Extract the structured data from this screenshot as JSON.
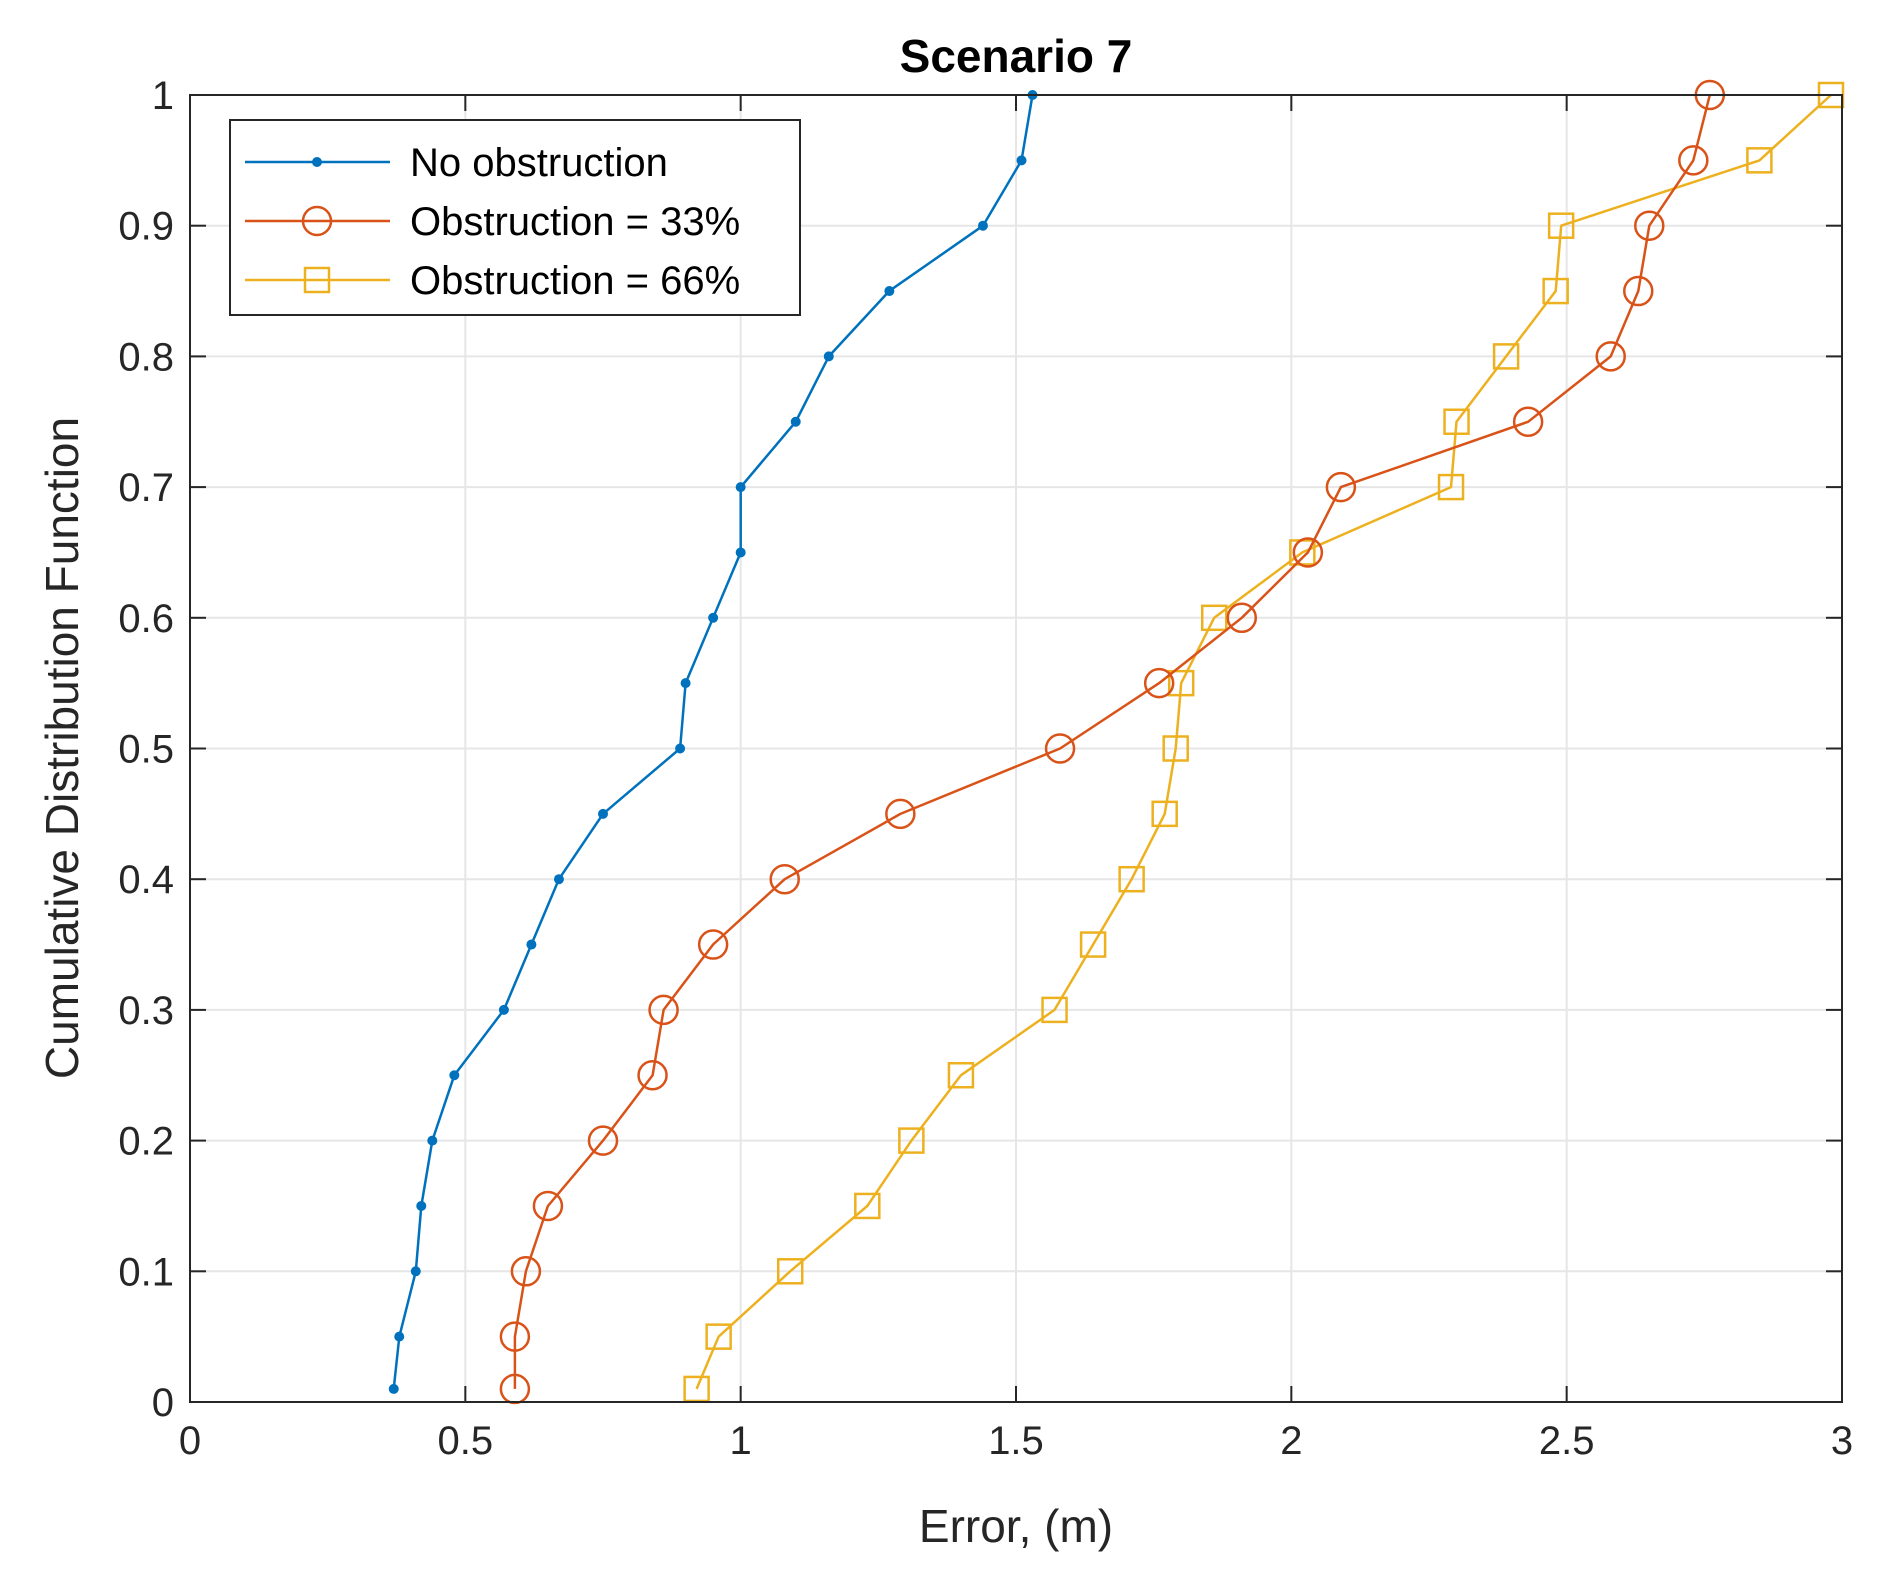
{
  "chart_data": {
    "type": "line",
    "title": "Scenario 7",
    "xlabel": "Error, (m)",
    "ylabel": "Cumulative Distribution Function",
    "xlim": [
      0,
      3
    ],
    "ylim": [
      0,
      1
    ],
    "xticks": [
      0,
      0.5,
      1,
      1.5,
      2,
      2.5,
      3
    ],
    "xtick_labels": [
      "0",
      "0.5",
      "1",
      "1.5",
      "2",
      "2.5",
      "3"
    ],
    "yticks": [
      0,
      0.1,
      0.2,
      0.3,
      0.4,
      0.5,
      0.6,
      0.7,
      0.8,
      0.9,
      1
    ],
    "ytick_labels": [
      "0",
      "0.1",
      "0.2",
      "0.3",
      "0.4",
      "0.5",
      "0.6",
      "0.7",
      "0.8",
      "0.9",
      "1"
    ],
    "grid": true,
    "legend_position": "top-left",
    "series": [
      {
        "name": "No obstruction",
        "color": "#0072BD",
        "marker": "dot",
        "x": [
          0.37,
          0.38,
          0.41,
          0.42,
          0.44,
          0.48,
          0.57,
          0.62,
          0.67,
          0.75,
          0.89,
          0.9,
          0.95,
          1.0,
          1.0,
          1.1,
          1.16,
          1.27,
          1.44,
          1.51,
          1.53
        ],
        "y": [
          0.01,
          0.05,
          0.1,
          0.15,
          0.2,
          0.25,
          0.3,
          0.35,
          0.4,
          0.45,
          0.5,
          0.55,
          0.6,
          0.65,
          0.7,
          0.75,
          0.8,
          0.85,
          0.9,
          0.95,
          1.0
        ]
      },
      {
        "name": "Obstruction = 33%",
        "color": "#D95319",
        "marker": "circle",
        "x": [
          0.59,
          0.59,
          0.61,
          0.65,
          0.75,
          0.84,
          0.86,
          0.95,
          1.08,
          1.29,
          1.58,
          1.76,
          1.91,
          2.03,
          2.09,
          2.43,
          2.58,
          2.63,
          2.65,
          2.73,
          2.76
        ],
        "y": [
          0.01,
          0.05,
          0.1,
          0.15,
          0.2,
          0.25,
          0.3,
          0.35,
          0.4,
          0.45,
          0.5,
          0.55,
          0.6,
          0.65,
          0.7,
          0.75,
          0.8,
          0.85,
          0.9,
          0.95,
          1.0
        ]
      },
      {
        "name": "Obstruction = 66%",
        "color": "#EDB120",
        "marker": "square",
        "x": [
          0.92,
          0.96,
          1.09,
          1.23,
          1.31,
          1.4,
          1.57,
          1.64,
          1.71,
          1.77,
          1.79,
          1.8,
          1.86,
          2.02,
          2.29,
          2.3,
          2.39,
          2.48,
          2.49,
          2.85,
          2.98
        ],
        "y": [
          0.01,
          0.05,
          0.1,
          0.15,
          0.2,
          0.25,
          0.3,
          0.35,
          0.4,
          0.45,
          0.5,
          0.55,
          0.6,
          0.65,
          0.7,
          0.75,
          0.8,
          0.85,
          0.9,
          0.95,
          1.0
        ]
      }
    ]
  }
}
